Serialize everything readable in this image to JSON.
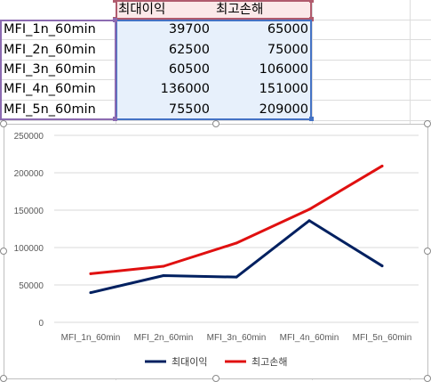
{
  "table": {
    "headers": [
      "최대이익",
      "최고손해"
    ],
    "rows": [
      {
        "label": "MFI_1n_60min",
        "max_profit": "39700",
        "max_loss": "65000"
      },
      {
        "label": "MFI_2n_60min",
        "max_profit": "62500",
        "max_loss": "75000"
      },
      {
        "label": "MFI_3n_60min",
        "max_profit": "60500",
        "max_loss": "106000"
      },
      {
        "label": "MFI_4n_60min",
        "max_profit": "136000",
        "max_loss": "151000"
      },
      {
        "label": "MFI_5n_60min",
        "max_profit": "75500",
        "max_loss": "209000"
      }
    ]
  },
  "chart_data": {
    "type": "line",
    "title": "",
    "xlabel": "",
    "ylabel": "",
    "categories": [
      "MFI_1n_60min",
      "MFI_2n_60min",
      "MFI_3n_60min",
      "MFI_4n_60min",
      "MFI_5n_60min"
    ],
    "series": [
      {
        "name": "최대이익",
        "color": "#002060",
        "values": [
          39700,
          62500,
          60500,
          136000,
          75500
        ]
      },
      {
        "name": "최고손해",
        "color": "#e01010",
        "values": [
          65000,
          75000,
          106000,
          151000,
          209000
        ]
      }
    ],
    "ylim": [
      0,
      250000
    ],
    "y_ticks": [
      "0",
      "50000",
      "100000",
      "150000",
      "200000",
      "250000"
    ],
    "grid": true,
    "legend": "bottom"
  }
}
